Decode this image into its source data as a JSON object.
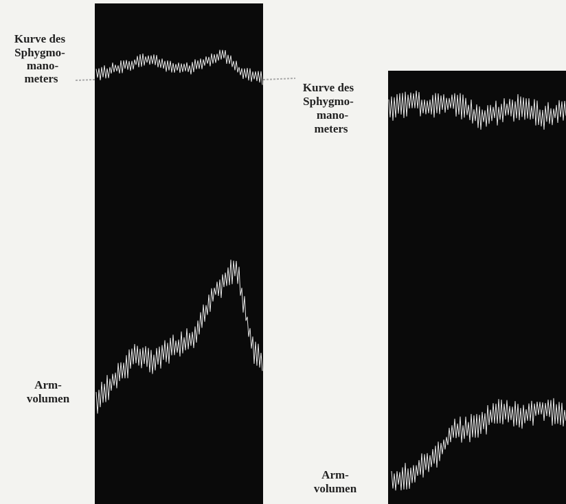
{
  "panels": [
    {
      "top_label": [
        "Kurve des",
        "Sphygmo-",
        "mano-",
        "meters"
      ],
      "bottom_label": [
        "Arm-",
        "volumen"
      ]
    },
    {
      "top_label": [
        "Kurve des",
        "Sphygmo-",
        "mano-",
        "meters"
      ],
      "bottom_label": [
        "Arm-",
        "volumen"
      ]
    }
  ]
}
